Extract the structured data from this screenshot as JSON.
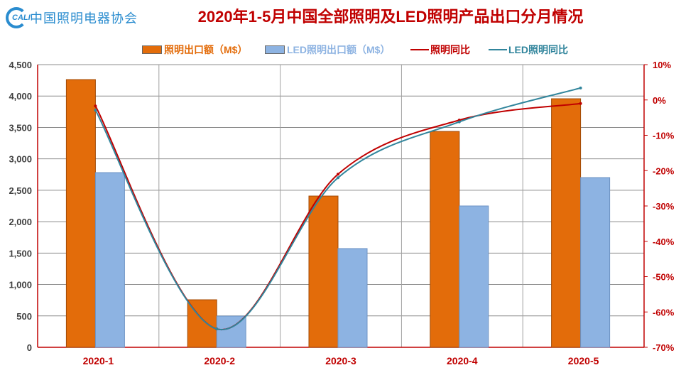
{
  "logo": {
    "mark": "CALI",
    "text": "中国照明电器协会"
  },
  "chart_data": {
    "type": "bar",
    "title": "2020年1-5月中国全部照明及LED照明产品出口分月情况",
    "categories": [
      "2020-1",
      "2020-2",
      "2020-3",
      "2020-4",
      "2020-5"
    ],
    "series": [
      {
        "name": "照明出口额（M$）",
        "kind": "bar",
        "axis": "left",
        "color": "#e36c0a",
        "values": [
          4262,
          757,
          2408,
          3437,
          3957
        ]
      },
      {
        "name": "LED照明出口额（M$）",
        "kind": "bar",
        "axis": "left",
        "color": "#8db3e2",
        "values": [
          2781,
          497,
          1572,
          2250,
          2702
        ]
      },
      {
        "name": "照明同比",
        "kind": "line",
        "axis": "right",
        "color": "#c00000",
        "values": [
          -1.7,
          -64.8,
          -21.0,
          -5.7,
          -1.0
        ]
      },
      {
        "name": "LED照明同比",
        "kind": "line",
        "axis": "right",
        "color": "#31859c",
        "values": [
          -2.9,
          -64.8,
          -22.0,
          -6.2,
          3.4
        ]
      }
    ],
    "ylim_left": [
      0,
      4500
    ],
    "ylim_right": [
      -70,
      10
    ],
    "left_ticks": [
      "0",
      "500",
      "1,000",
      "1,500",
      "2,000",
      "2,500",
      "3,000",
      "3,500",
      "4,000",
      "4,500"
    ],
    "right_ticks": [
      "-70%",
      "-60%",
      "-50%",
      "-40%",
      "-30%",
      "-20%",
      "-10%",
      "0%",
      "10%"
    ],
    "grid": true,
    "legend_position": "top"
  }
}
